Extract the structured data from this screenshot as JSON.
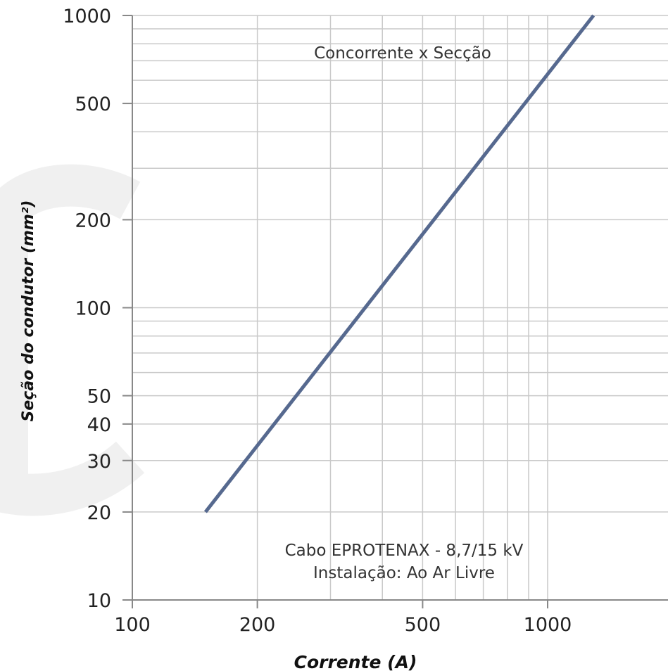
{
  "chart_data": {
    "type": "line",
    "title": "Concorrente x Secção",
    "xlabel": "Corrente (A)",
    "ylabel": "Seção do condutor (mm²)",
    "x_scale": "log",
    "y_scale": "log",
    "xlim": [
      100,
      1400
    ],
    "ylim": [
      10,
      1000
    ],
    "x_ticks": [
      100,
      200,
      500,
      1000
    ],
    "y_ticks": [
      10,
      20,
      30,
      40,
      50,
      100,
      200,
      500,
      1000
    ],
    "grid": true,
    "series": [
      {
        "x": [
          150,
          1290
        ],
        "y": [
          20,
          1000
        ],
        "color": "#56698f"
      }
    ],
    "annotations": [
      "Cabo EPROTENAX - 8,7/15 kV",
      "Instalação: Ao Ar Livre"
    ]
  }
}
